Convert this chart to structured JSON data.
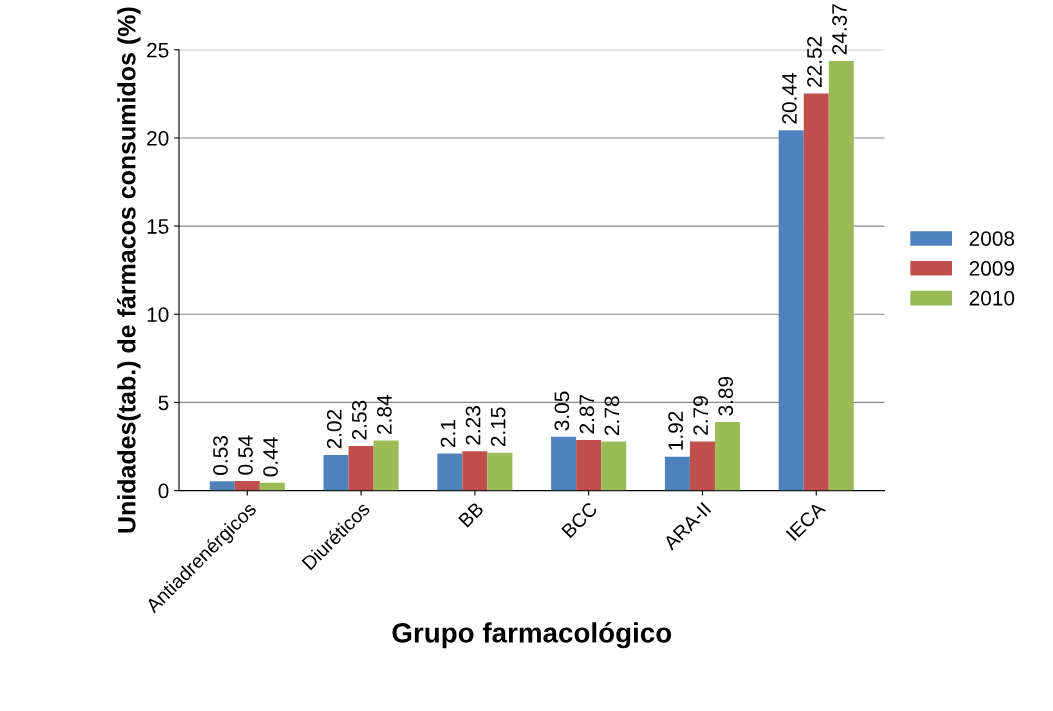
{
  "chart_data": {
    "type": "bar",
    "xlabel": "Grupo farmacológico",
    "ylabel": "Unidades(tab.) de fármacos consumidos (%)",
    "categories": [
      "Antiadrenérgicos",
      "Diuréticos",
      "BB",
      "BCC",
      "ARA-II",
      "IECA"
    ],
    "series": [
      {
        "name": "2008",
        "color": "#4f81bd",
        "values": [
          0.53,
          2.02,
          2.1,
          3.05,
          1.92,
          20.44
        ]
      },
      {
        "name": "2009",
        "color": "#c0504d",
        "values": [
          0.54,
          2.53,
          2.23,
          2.87,
          2.79,
          22.52
        ]
      },
      {
        "name": "2010",
        "color": "#9bbb59",
        "values": [
          0.44,
          2.84,
          2.15,
          2.78,
          3.89,
          24.37
        ]
      }
    ],
    "ylim": [
      0,
      25
    ],
    "yticks": [
      0,
      5,
      10,
      15,
      20,
      25
    ],
    "grid": "y",
    "legend": "right",
    "data_labels": true
  }
}
